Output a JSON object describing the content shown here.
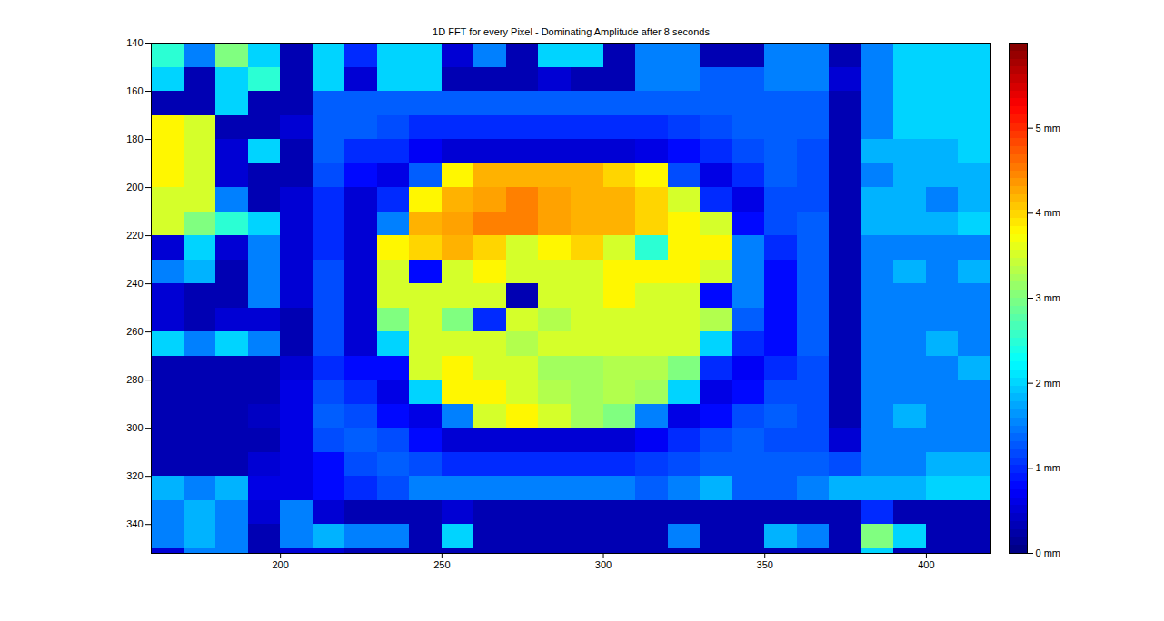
{
  "chart_data": {
    "type": "heatmap",
    "title": "1D FFT for every Pixel - Dominating Amplitude after 8 seconds",
    "color": "jet",
    "xlim": [
      160,
      420
    ],
    "ylim": [
      140,
      352
    ],
    "xticks": [
      200,
      250,
      300,
      350,
      400
    ],
    "yticks": [
      140,
      160,
      180,
      200,
      220,
      240,
      260,
      280,
      300,
      320,
      340
    ],
    "x_edges": [
      160,
      170,
      180,
      190,
      200,
      210,
      220,
      230,
      240,
      250,
      260,
      270,
      280,
      290,
      300,
      310,
      320,
      330,
      340,
      350,
      360,
      370,
      380,
      390,
      400,
      410,
      420
    ],
    "y_edges": [
      140,
      150,
      160,
      170,
      180,
      190,
      200,
      210,
      220,
      230,
      240,
      250,
      260,
      270,
      280,
      290,
      300,
      310,
      320,
      330,
      340,
      350,
      352
    ],
    "values": [
      [
        2.5,
        1.5,
        3.0,
        2.0,
        0.3,
        2.0,
        1.0,
        2.0,
        2.0,
        0.5,
        1.5,
        0.3,
        2.0,
        2.0,
        0.3,
        1.5,
        1.5,
        0.3,
        0.3,
        1.5,
        1.5,
        0.3,
        1.5,
        2.0,
        2.0,
        2.0
      ],
      [
        2.0,
        0.3,
        2.0,
        2.5,
        0.3,
        2.0,
        0.5,
        2.0,
        2.0,
        0.3,
        0.3,
        0.3,
        0.5,
        0.3,
        0.3,
        1.5,
        1.5,
        1.3,
        1.3,
        1.5,
        1.5,
        0.5,
        1.5,
        2.0,
        2.0,
        2.0
      ],
      [
        0.3,
        0.3,
        2.0,
        0.3,
        0.3,
        1.3,
        1.3,
        1.3,
        1.3,
        1.3,
        1.3,
        1.3,
        1.3,
        1.3,
        1.3,
        1.3,
        1.3,
        1.3,
        1.3,
        1.3,
        1.3,
        0.3,
        1.5,
        2.0,
        2.0,
        2.0
      ],
      [
        3.8,
        3.5,
        0.3,
        0.3,
        0.5,
        1.3,
        1.3,
        1.2,
        1.0,
        1.0,
        1.0,
        1.0,
        1.0,
        1.0,
        1.0,
        1.0,
        1.1,
        1.2,
        1.3,
        1.3,
        1.3,
        0.3,
        1.5,
        2.0,
        2.0,
        2.0
      ],
      [
        3.8,
        3.5,
        0.5,
        2.0,
        0.3,
        1.3,
        1.0,
        1.0,
        0.7,
        0.5,
        0.5,
        0.5,
        0.5,
        0.5,
        0.5,
        0.6,
        0.8,
        1.0,
        1.2,
        1.3,
        1.2,
        0.3,
        1.8,
        1.8,
        1.8,
        2.0
      ],
      [
        3.8,
        3.5,
        0.5,
        0.3,
        0.3,
        1.2,
        0.8,
        0.6,
        1.3,
        3.8,
        4.2,
        4.2,
        4.2,
        4.2,
        4.0,
        3.8,
        1.2,
        0.6,
        1.0,
        1.3,
        1.2,
        0.3,
        1.5,
        1.8,
        1.8,
        1.8
      ],
      [
        3.5,
        3.5,
        1.5,
        0.3,
        0.5,
        1.0,
        0.5,
        1.0,
        3.8,
        4.2,
        4.3,
        4.5,
        4.3,
        4.2,
        4.2,
        4.0,
        3.5,
        1.0,
        0.6,
        1.2,
        1.2,
        0.3,
        1.8,
        1.8,
        1.5,
        1.8
      ],
      [
        3.5,
        3.0,
        2.5,
        2.0,
        0.5,
        1.0,
        0.5,
        1.5,
        4.2,
        4.3,
        4.5,
        4.5,
        4.3,
        4.2,
        4.2,
        4.0,
        3.8,
        3.5,
        0.8,
        1.2,
        1.3,
        0.3,
        1.8,
        1.8,
        1.8,
        2.0
      ],
      [
        0.5,
        2.0,
        0.5,
        1.5,
        0.5,
        1.0,
        0.5,
        3.8,
        4.0,
        4.2,
        4.0,
        3.5,
        3.8,
        4.0,
        3.5,
        2.5,
        3.8,
        3.8,
        1.5,
        1.0,
        1.3,
        0.3,
        1.5,
        1.5,
        1.5,
        1.5
      ],
      [
        1.5,
        1.8,
        0.3,
        1.5,
        0.5,
        1.2,
        0.5,
        3.5,
        0.8,
        3.5,
        3.8,
        3.5,
        3.5,
        3.5,
        3.8,
        3.8,
        3.8,
        3.5,
        1.5,
        0.8,
        1.3,
        0.3,
        1.5,
        1.8,
        1.5,
        1.8
      ],
      [
        0.5,
        0.3,
        0.3,
        1.5,
        0.5,
        1.2,
        0.5,
        3.5,
        3.5,
        3.5,
        3.5,
        0.3,
        3.5,
        3.5,
        3.8,
        3.5,
        3.5,
        0.8,
        1.5,
        0.8,
        1.3,
        0.3,
        1.5,
        1.5,
        1.5,
        1.5
      ],
      [
        0.5,
        0.3,
        0.5,
        0.5,
        0.3,
        1.2,
        0.5,
        3.0,
        3.5,
        3.0,
        1.0,
        3.5,
        3.3,
        3.5,
        3.5,
        3.5,
        3.5,
        3.3,
        1.3,
        0.8,
        1.3,
        0.3,
        1.5,
        1.5,
        1.5,
        1.5
      ],
      [
        2.0,
        1.5,
        2.0,
        1.5,
        0.3,
        1.2,
        0.5,
        2.0,
        3.5,
        3.5,
        3.5,
        3.3,
        3.5,
        3.5,
        3.5,
        3.5,
        3.5,
        2.0,
        1.0,
        0.8,
        1.3,
        0.3,
        1.5,
        1.5,
        1.8,
        1.5
      ],
      [
        0.3,
        0.3,
        0.3,
        0.3,
        0.5,
        1.0,
        0.8,
        0.8,
        3.5,
        3.8,
        3.5,
        3.5,
        3.2,
        3.2,
        3.3,
        3.3,
        3.0,
        1.0,
        0.7,
        1.0,
        1.2,
        0.3,
        1.5,
        1.5,
        1.5,
        1.8
      ],
      [
        0.3,
        0.3,
        0.3,
        0.3,
        0.6,
        1.2,
        1.0,
        0.6,
        2.0,
        3.8,
        3.8,
        3.5,
        3.3,
        3.2,
        3.3,
        3.2,
        2.0,
        0.6,
        0.8,
        1.2,
        1.2,
        0.3,
        1.5,
        1.5,
        1.5,
        1.5
      ],
      [
        0.3,
        0.3,
        0.3,
        0.4,
        0.6,
        1.3,
        1.2,
        0.8,
        0.6,
        1.5,
        3.5,
        3.8,
        3.5,
        3.2,
        3.0,
        1.5,
        0.6,
        0.8,
        1.2,
        1.3,
        1.2,
        0.3,
        1.5,
        1.8,
        1.5,
        1.5
      ],
      [
        0.3,
        0.3,
        0.3,
        0.3,
        0.6,
        1.2,
        1.3,
        1.2,
        0.8,
        0.5,
        0.5,
        0.5,
        0.5,
        0.5,
        0.5,
        0.7,
        1.0,
        1.2,
        1.3,
        1.2,
        1.2,
        0.5,
        1.5,
        1.5,
        1.5,
        1.5
      ],
      [
        0.3,
        0.3,
        0.3,
        0.5,
        0.6,
        0.8,
        1.2,
        1.3,
        1.2,
        1.0,
        1.0,
        1.0,
        1.0,
        1.0,
        1.0,
        1.1,
        1.2,
        1.3,
        1.3,
        1.3,
        1.3,
        1.2,
        1.5,
        1.5,
        1.8,
        1.8
      ],
      [
        1.8,
        1.5,
        1.8,
        0.6,
        0.6,
        0.8,
        1.0,
        1.2,
        1.5,
        1.5,
        1.5,
        1.5,
        1.5,
        1.5,
        1.5,
        1.3,
        1.5,
        1.8,
        1.3,
        1.3,
        1.5,
        1.8,
        1.8,
        1.8,
        2.0,
        2.0
      ],
      [
        1.5,
        1.8,
        1.5,
        0.5,
        1.5,
        0.5,
        0.3,
        0.3,
        0.3,
        0.5,
        0.3,
        0.3,
        0.3,
        0.3,
        0.3,
        0.3,
        0.3,
        0.3,
        0.3,
        0.3,
        0.3,
        0.3,
        1.0,
        0.3,
        0.3,
        0.3
      ],
      [
        1.5,
        1.8,
        1.5,
        0.3,
        1.5,
        1.8,
        1.5,
        1.5,
        0.3,
        2.0,
        0.3,
        0.3,
        0.3,
        0.3,
        0.3,
        0.3,
        1.5,
        0.3,
        0.3,
        1.8,
        1.5,
        0.3,
        3.0,
        2.0,
        0.3,
        0.3
      ],
      [
        0.5,
        1.5,
        1.5,
        0.3,
        0.5,
        0.5,
        0.3,
        0.3,
        0.3,
        0.3,
        0.3,
        0.3,
        0.3,
        0.3,
        0.3,
        0.3,
        0.3,
        0.3,
        0.3,
        0.3,
        0.3,
        0.3,
        2.0,
        0.3,
        0.3,
        0.3
      ]
    ],
    "colorbar": {
      "range": [
        0,
        6
      ],
      "ticks": [
        {
          "value": 0,
          "label": "0 mm"
        },
        {
          "value": 1,
          "label": "1 mm"
        },
        {
          "value": 2,
          "label": "2 mm"
        },
        {
          "value": 3,
          "label": "3 mm"
        },
        {
          "value": 4,
          "label": "4 mm"
        },
        {
          "value": 5,
          "label": "5 mm"
        }
      ]
    }
  }
}
